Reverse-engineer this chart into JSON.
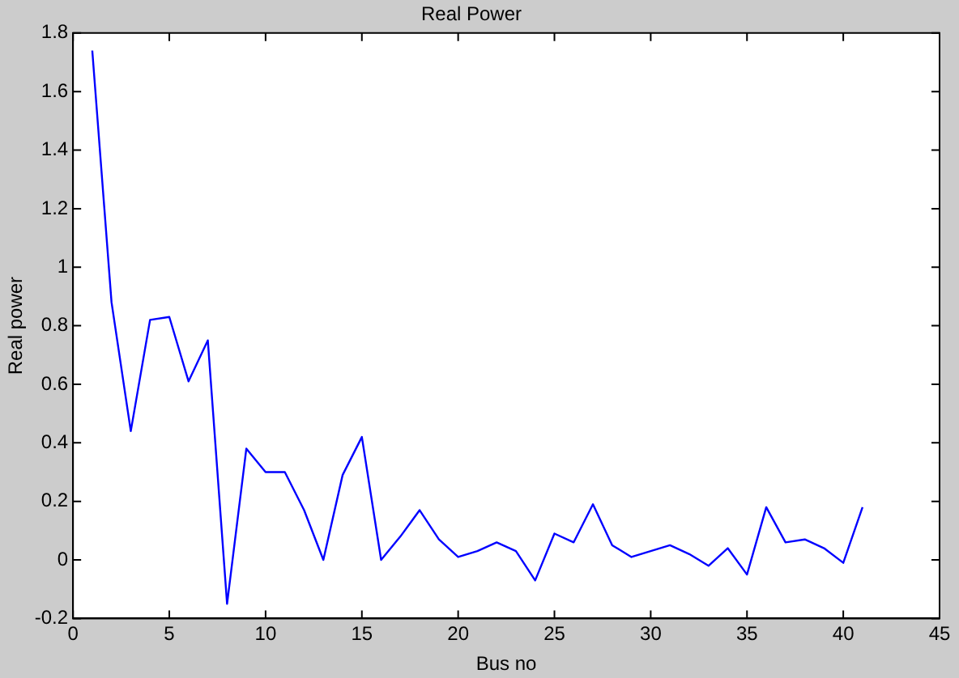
{
  "chart_data": {
    "type": "line",
    "title": "Real Power",
    "xlabel": "Bus no",
    "ylabel": "Real power",
    "x": [
      1,
      2,
      3,
      4,
      5,
      6,
      7,
      8,
      9,
      10,
      11,
      12,
      13,
      14,
      15,
      16,
      17,
      18,
      19,
      20,
      21,
      22,
      23,
      24,
      25,
      26,
      27,
      28,
      29,
      30,
      31,
      32,
      33,
      34,
      35,
      36,
      37,
      38,
      39,
      40,
      41
    ],
    "series": [
      {
        "color": "#0000ff",
        "values": [
          1.74,
          0.88,
          0.44,
          0.82,
          0.83,
          0.61,
          0.75,
          -0.15,
          0.38,
          0.3,
          0.3,
          0.17,
          0.0,
          0.29,
          0.42,
          0.0,
          0.08,
          0.17,
          0.07,
          0.01,
          0.03,
          0.06,
          0.03,
          -0.07,
          0.09,
          0.06,
          0.19,
          0.05,
          0.01,
          0.03,
          0.05,
          0.02,
          -0.02,
          0.04,
          -0.05,
          0.18,
          0.06,
          0.07,
          0.04,
          -0.01,
          0.18
        ]
      }
    ],
    "xlim": [
      0,
      45
    ],
    "xticks": [
      0,
      5,
      10,
      15,
      20,
      25,
      30,
      35,
      40,
      45
    ],
    "ylim": [
      -0.2,
      1.8
    ],
    "yticks": [
      -0.2,
      0,
      0.2,
      0.4,
      0.6,
      0.8,
      1,
      1.2,
      1.4,
      1.6,
      1.8
    ],
    "grid": false,
    "legend": false,
    "marker": "none",
    "line_style": "solid"
  }
}
